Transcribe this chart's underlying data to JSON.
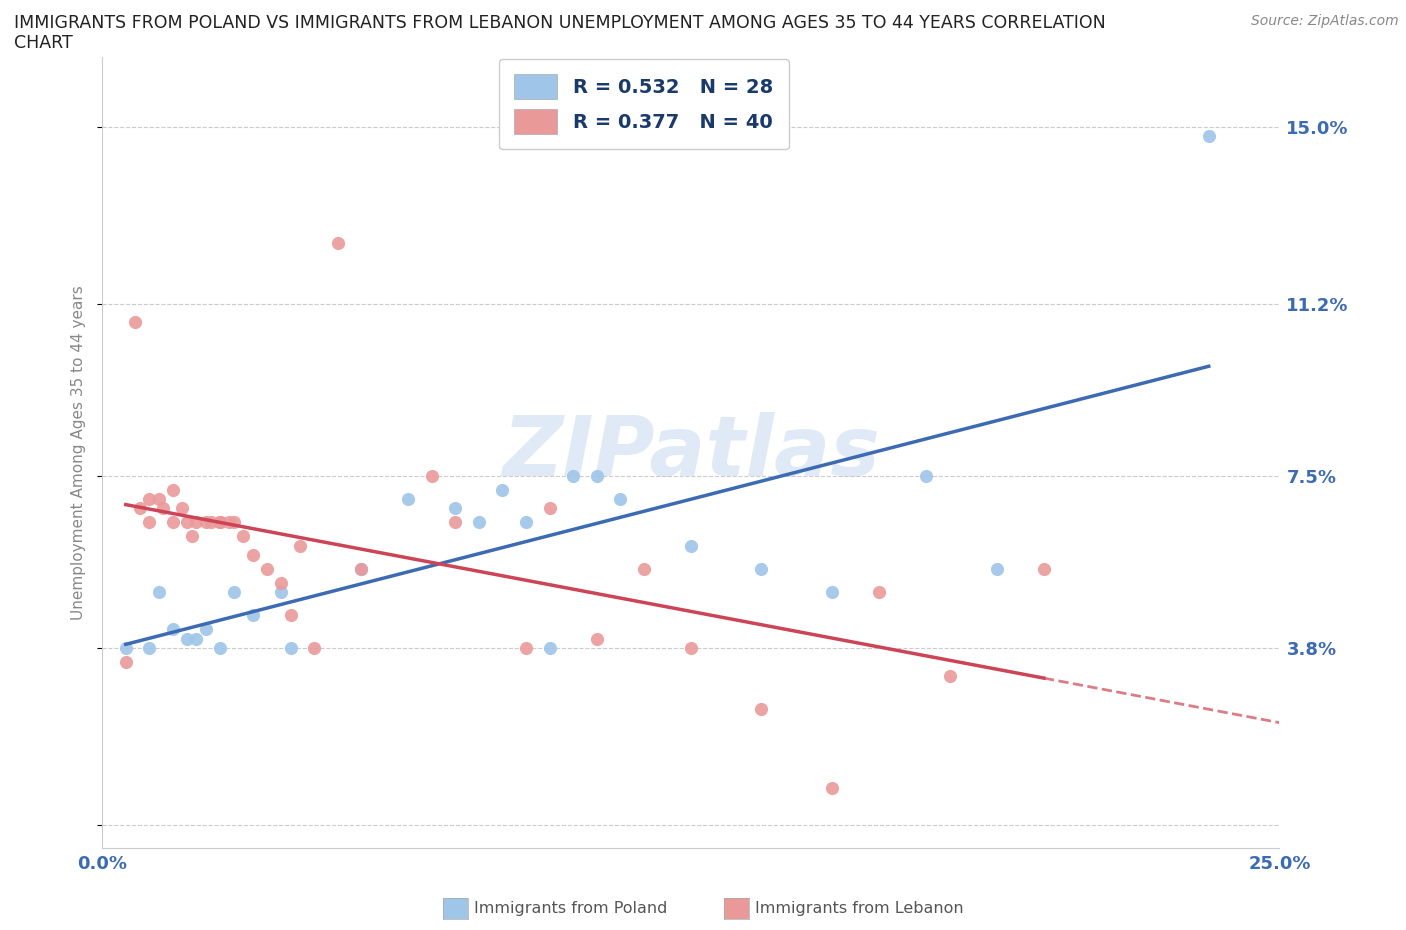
{
  "title_line1": "IMMIGRANTS FROM POLAND VS IMMIGRANTS FROM LEBANON UNEMPLOYMENT AMONG AGES 35 TO 44 YEARS CORRELATION",
  "title_line2": "CHART",
  "source": "Source: ZipAtlas.com",
  "ylabel": "Unemployment Among Ages 35 to 44 years",
  "xlim": [
    0.0,
    0.25
  ],
  "ylim": [
    -0.005,
    0.165
  ],
  "yticks": [
    0.0,
    0.038,
    0.075,
    0.112,
    0.15
  ],
  "ytick_labels": [
    "",
    "3.8%",
    "7.5%",
    "11.2%",
    "15.0%"
  ],
  "xticks": [
    0.0,
    0.025,
    0.05,
    0.075,
    0.1,
    0.125,
    0.15,
    0.175,
    0.2,
    0.225,
    0.25
  ],
  "xtick_labels": [
    "0.0%",
    "",
    "",
    "",
    "",
    "",
    "",
    "",
    "",
    "",
    "25.0%"
  ],
  "poland_color": "#9fc5e8",
  "lebanon_color": "#ea9999",
  "poland_R": 0.532,
  "poland_N": 28,
  "lebanon_R": 0.377,
  "lebanon_N": 40,
  "trend_color_poland": "#3d6bb3",
  "trend_color_lebanon": "#cc4455",
  "watermark": "ZIPatlas",
  "poland_x": [
    0.005,
    0.01,
    0.012,
    0.015,
    0.018,
    0.02,
    0.022,
    0.025,
    0.028,
    0.032,
    0.038,
    0.04,
    0.055,
    0.065,
    0.075,
    0.08,
    0.085,
    0.09,
    0.095,
    0.1,
    0.105,
    0.11,
    0.125,
    0.14,
    0.155,
    0.175,
    0.19,
    0.235
  ],
  "poland_y": [
    0.038,
    0.038,
    0.05,
    0.042,
    0.04,
    0.04,
    0.042,
    0.038,
    0.05,
    0.045,
    0.05,
    0.038,
    0.055,
    0.07,
    0.068,
    0.065,
    0.072,
    0.065,
    0.038,
    0.075,
    0.075,
    0.07,
    0.06,
    0.055,
    0.05,
    0.075,
    0.055,
    0.148
  ],
  "lebanon_x": [
    0.005,
    0.007,
    0.008,
    0.01,
    0.01,
    0.012,
    0.013,
    0.015,
    0.015,
    0.017,
    0.018,
    0.019,
    0.02,
    0.022,
    0.023,
    0.025,
    0.025,
    0.027,
    0.028,
    0.03,
    0.032,
    0.035,
    0.038,
    0.04,
    0.042,
    0.045,
    0.05,
    0.055,
    0.07,
    0.075,
    0.09,
    0.095,
    0.105,
    0.115,
    0.125,
    0.14,
    0.155,
    0.165,
    0.18,
    0.2
  ],
  "lebanon_y": [
    0.035,
    0.108,
    0.068,
    0.065,
    0.07,
    0.07,
    0.068,
    0.072,
    0.065,
    0.068,
    0.065,
    0.062,
    0.065,
    0.065,
    0.065,
    0.065,
    0.065,
    0.065,
    0.065,
    0.062,
    0.058,
    0.055,
    0.052,
    0.045,
    0.06,
    0.038,
    0.125,
    0.055,
    0.075,
    0.065,
    0.038,
    0.068,
    0.04,
    0.055,
    0.038,
    0.025,
    0.008,
    0.05,
    0.032,
    0.055
  ],
  "legend_label_poland": "R = 0.532   N = 28",
  "legend_label_lebanon": "R = 0.377   N = 40",
  "bottom_label_poland": "Immigrants from Poland",
  "bottom_label_lebanon": "Immigrants from Lebanon"
}
